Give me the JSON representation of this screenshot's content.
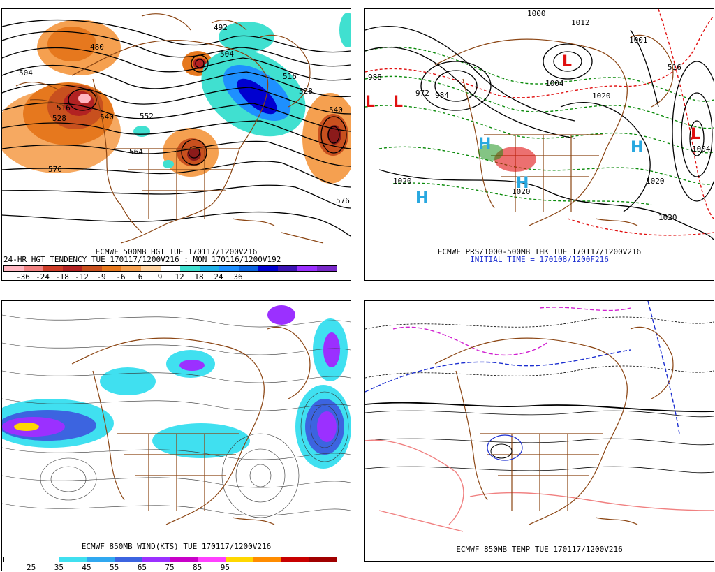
{
  "panels": {
    "hgt500": {
      "caption1": "ECMWF 500MB HGT TUE 170117/1200V216",
      "caption2": "24-HR HGT TENDENCY TUE 170117/1200V216 : MON 170116/1200V192",
      "colorbar_labels": [
        "-36",
        "-24",
        "-18",
        "-12",
        "-9",
        "-6",
        "6",
        "9",
        "12",
        "18",
        "24",
        "36"
      ],
      "colorbar_colors": [
        "#ffb6c1",
        "#f08080",
        "#cd3c28",
        "#b22222",
        "#c8501e",
        "#e6781e",
        "#f5a050",
        "#ffd2a0",
        "#ffffff",
        "#40e0d0",
        "#20b2e8",
        "#1e90ff",
        "#0a64e0",
        "#0000d0",
        "#3c14b4",
        "#9b30ff",
        "#7828c8"
      ],
      "contour_labels": [
        "480",
        "492",
        "504",
        "504",
        "516",
        "516",
        "528",
        "528",
        "540",
        "540",
        "552",
        "564",
        "576",
        "576"
      ]
    },
    "prs": {
      "caption1": "ECMWF PRS/1000-500MB THK TUE 170117/1200V216",
      "caption2": "INITIAL TIME = 170108/1200F216",
      "contour_labels": [
        "1000",
        "1012",
        "1001",
        "1004",
        "988",
        "972",
        "984",
        "1020",
        "1020",
        "1020",
        "1020",
        "1020",
        "516",
        "1004"
      ],
      "centers": [
        "L",
        "L",
        "L",
        "H",
        "H",
        "H",
        "H",
        "L"
      ]
    },
    "wind850": {
      "caption1": "ECMWF 850MB WIND(KTS) TUE 170117/1200V216",
      "colorbar_labels": [
        "25",
        "35",
        "45",
        "55",
        "65",
        "75",
        "85",
        "95"
      ],
      "colorbar_colors": [
        "#ffffff",
        "#ffffff",
        "#40e0f0",
        "#30a8f0",
        "#3c64e0",
        "#9b30ff",
        "#c800c8",
        "#ff40ff",
        "#ffd700",
        "#ff8c00",
        "#c80000",
        "#a00000"
      ]
    },
    "temp850": {
      "caption1": "ECMWF 850MB TEMP TUE 170117/1200V216"
    }
  },
  "colors": {
    "coast": "#8b4513",
    "contour": "#000000",
    "thickness_green": "#0a8a0a",
    "thickness_red": "#e01010",
    "high": "#29a8e0",
    "low": "#e01010",
    "cold": "#1c2fd0",
    "very_cold": "#d020d0",
    "warm": "#f08080"
  }
}
